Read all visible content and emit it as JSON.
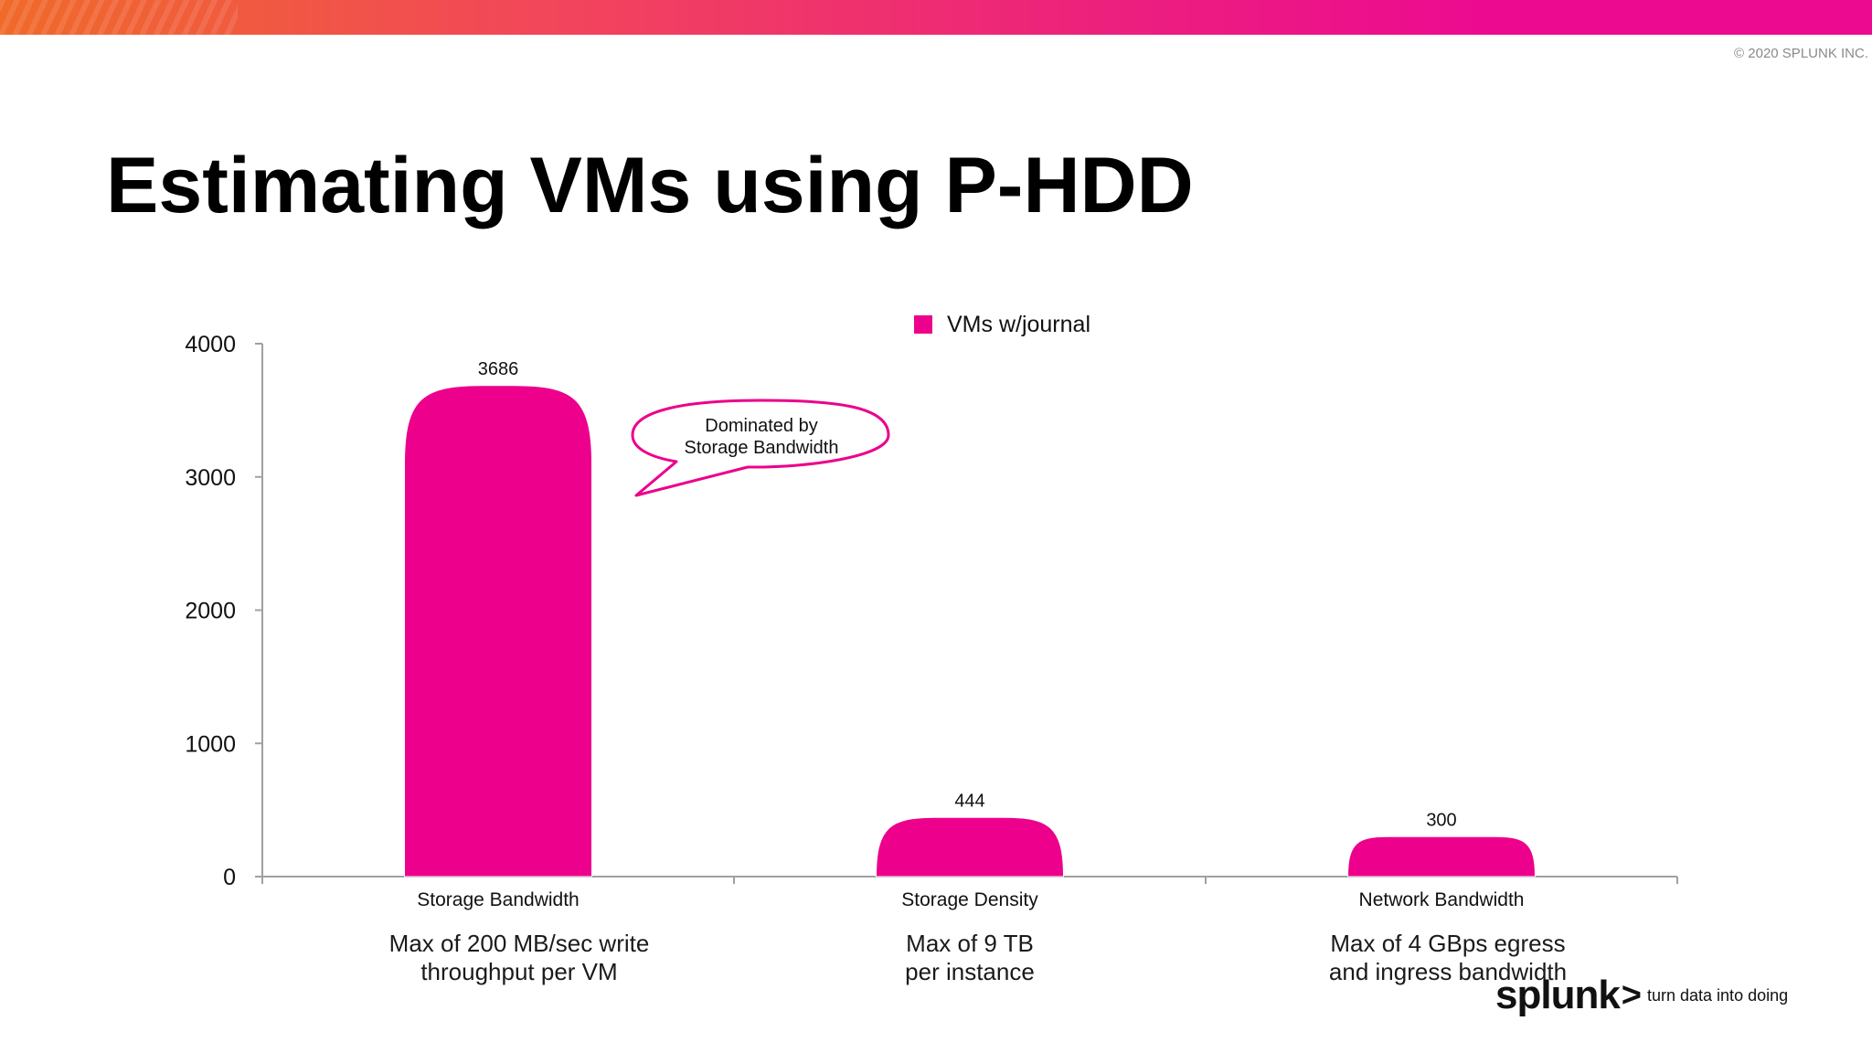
{
  "header": {
    "copyright": "© 2020 SPLUNK INC."
  },
  "slide": {
    "title": "Estimating VMs using P-HDD"
  },
  "colors": {
    "bar": "#ec008c",
    "axis": "#a0a0a0",
    "band_start": "#f06a2a",
    "band_end": "#ec0a91"
  },
  "chart_data": {
    "type": "bar",
    "categories": [
      "Storage Bandwidth",
      "Storage Density",
      "Network Bandwidth"
    ],
    "series": [
      {
        "name": "VMs w/journal",
        "values": [
          3686,
          444,
          300
        ]
      }
    ],
    "data_labels": [
      "3686",
      "444",
      "300"
    ],
    "ylim": [
      0,
      4000
    ],
    "yticks": [
      0,
      1000,
      2000,
      3000,
      4000
    ],
    "grid": false,
    "legend_position": "top-center",
    "annotation": {
      "text_line1": "Dominated by",
      "text_line2": "Storage Bandwidth",
      "target_category": "Storage Bandwidth"
    },
    "category_notes": [
      {
        "line1": "Max of 200 MB/sec write",
        "line2": "throughput per VM"
      },
      {
        "line1": "Max of 9 TB",
        "line2": "per instance"
      },
      {
        "line1": "Max of 4 GBps egress",
        "line2": "and ingress bandwidth"
      }
    ]
  },
  "brand": {
    "word": "splunk",
    "chevron": ">",
    "tagline": "turn data into doing"
  }
}
